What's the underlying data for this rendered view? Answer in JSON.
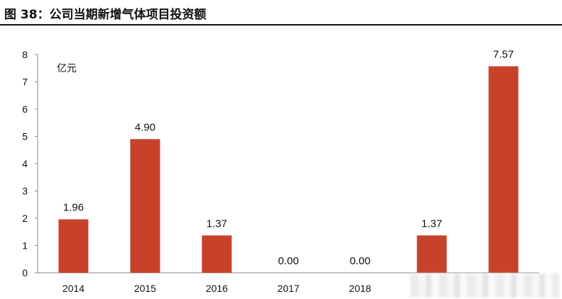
{
  "figure": {
    "title": "图 38：公司当期新增气体项目投资额"
  },
  "chart_data": {
    "type": "bar",
    "title": "图 38：公司当期新增气体项目投资额",
    "unit": "亿元",
    "categories": [
      "2014",
      "2015",
      "2016",
      "2017",
      "2018",
      "",
      ""
    ],
    "values": [
      1.96,
      4.9,
      1.37,
      0.0,
      0.0,
      1.37,
      7.57
    ],
    "value_labels": [
      "1.96",
      "4.90",
      "1.37",
      "0.00",
      "0.00",
      "1.37",
      "7.57"
    ],
    "yticks": [
      "0",
      "1",
      "2",
      "3",
      "4",
      "5",
      "6",
      "7",
      "8"
    ],
    "ylim": [
      0,
      8
    ],
    "xlabel": "",
    "ylabel": "",
    "grid": false,
    "legend": "none",
    "colors": {
      "bar": "#c8412a",
      "axis": "#8a8a8a",
      "text": "#111111"
    }
  }
}
